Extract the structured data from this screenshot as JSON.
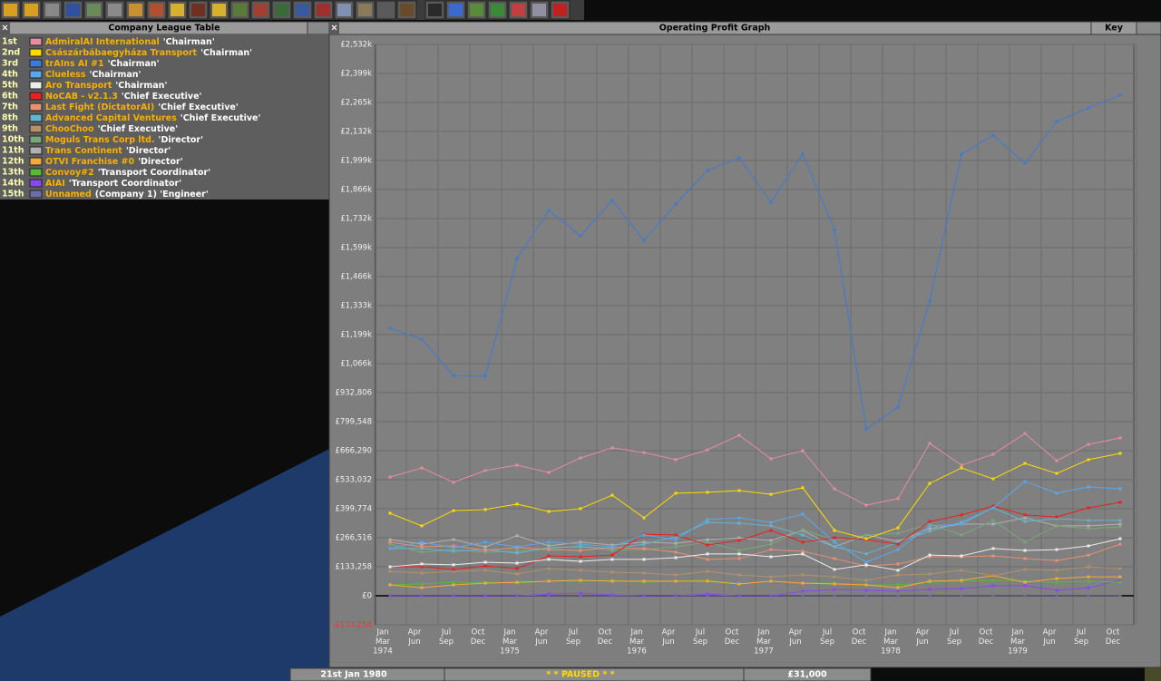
{
  "league_table": {
    "title": "Company League Table",
    "rows": [
      {
        "rank": "1st",
        "title": "'Chairman'"
      },
      {
        "rank": "2nd",
        "title": "'Chairman'"
      },
      {
        "rank": "3rd",
        "title": "'Chairman'"
      },
      {
        "rank": "4th",
        "title": "'Chairman'"
      },
      {
        "rank": "5th",
        "title": "'Chairman'"
      },
      {
        "rank": "6th",
        "title": "'Chief Executive'"
      },
      {
        "rank": "7th",
        "title": "'Chief Executive'"
      },
      {
        "rank": "8th",
        "title": "'Chief Executive'"
      },
      {
        "rank": "9th",
        "title": "'Chief Executive'"
      },
      {
        "rank": "10th",
        "title": "'Director'"
      },
      {
        "rank": "11th",
        "title": "'Director'"
      },
      {
        "rank": "12th",
        "title": "'Director'"
      },
      {
        "rank": "13th",
        "title": "'Transport Coordinator'"
      },
      {
        "rank": "14th",
        "title": "'Transport Coordinator'"
      },
      {
        "rank": "15th",
        "title": "(Company 1) 'Engineer'"
      }
    ]
  },
  "chart_data": {
    "type": "line",
    "title": "Operating Profit Graph",
    "key_button": "Key",
    "grid": true,
    "categories": [
      [
        "Jan",
        "Mar",
        "1974"
      ],
      [
        "Apr",
        "Jun"
      ],
      [
        "Jul",
        "Sep"
      ],
      [
        "Oct",
        "Dec"
      ],
      [
        "Jan",
        "Mar",
        "1975"
      ],
      [
        "Apr",
        "Jun"
      ],
      [
        "Jul",
        "Sep"
      ],
      [
        "Oct",
        "Dec"
      ],
      [
        "Jan",
        "Mar",
        "1976"
      ],
      [
        "Apr",
        "Jun"
      ],
      [
        "Jul",
        "Sep"
      ],
      [
        "Oct",
        "Dec"
      ],
      [
        "Jan",
        "Mar",
        "1977"
      ],
      [
        "Apr",
        "Jun"
      ],
      [
        "Jul",
        "Sep"
      ],
      [
        "Oct",
        "Dec"
      ],
      [
        "Jan",
        "Mar",
        "1978"
      ],
      [
        "Apr",
        "Jun"
      ],
      [
        "Jul",
        "Sep"
      ],
      [
        "Oct",
        "Dec"
      ],
      [
        "Jan",
        "Mar",
        "1979"
      ],
      [
        "Apr",
        "Jun"
      ],
      [
        "Jul",
        "Sep"
      ],
      [
        "Oct",
        "Dec"
      ]
    ],
    "ylim": [
      -133258,
      2531902
    ],
    "yticks": [
      {
        "value": -133258,
        "label": "-£133,258"
      },
      {
        "value": 0,
        "label": "£0"
      },
      {
        "value": 133258,
        "label": "£133,258"
      },
      {
        "value": 266516,
        "label": "£266,516"
      },
      {
        "value": 399774,
        "label": "£399,774"
      },
      {
        "value": 533032,
        "label": "£533,032"
      },
      {
        "value": 666290,
        "label": "£666,290"
      },
      {
        "value": 799548,
        "label": "£799,548"
      },
      {
        "value": 932806,
        "label": "£932,806"
      },
      {
        "value": 1066064,
        "label": "£1,066k"
      },
      {
        "value": 1199322,
        "label": "£1,199k"
      },
      {
        "value": 1332580,
        "label": "£1,333k"
      },
      {
        "value": 1465838,
        "label": "£1,466k"
      },
      {
        "value": 1599096,
        "label": "£1,599k"
      },
      {
        "value": 1732354,
        "label": "£1,732k"
      },
      {
        "value": 1865612,
        "label": "£1,866k"
      },
      {
        "value": 1998870,
        "label": "£1,999k"
      },
      {
        "value": 2132128,
        "label": "£2,132k"
      },
      {
        "value": 2265386,
        "label": "£2,265k"
      },
      {
        "value": 2398644,
        "label": "£2,399k"
      },
      {
        "value": 2531902,
        "label": "£2,532k"
      }
    ],
    "series": [
      {
        "name": "AdmiralAI International",
        "color": "#e48ca0",
        "values": [
          545000,
          587000,
          521000,
          575000,
          600000,
          566000,
          633000,
          679000,
          658000,
          625000,
          670000,
          737000,
          629000,
          666000,
          491000,
          416000,
          446000,
          700000,
          600000,
          650000,
          745000,
          620000,
          695000,
          725000
        ]
      },
      {
        "name": "Császárbábaegyháza Transport",
        "color": "#fcdc00",
        "values": [
          379000,
          321000,
          391000,
          396000,
          421000,
          387000,
          400000,
          462000,
          358000,
          471000,
          475000,
          483000,
          466000,
          496000,
          300000,
          262000,
          312000,
          516000,
          587000,
          537000,
          608000,
          562000,
          625000,
          654000
        ]
      },
      {
        "name": "trAIns AI #1",
        "color": "#3c7ad8",
        "values": [
          1228000,
          1178000,
          1012000,
          1008000,
          1549000,
          1770000,
          1653000,
          1816000,
          1632000,
          1799000,
          1953000,
          2011000,
          1807000,
          2028000,
          1682000,
          766000,
          866000,
          1353000,
          2028000,
          2115000,
          1986000,
          2178000,
          2240000,
          2299000
        ]
      },
      {
        "name": "Clueless",
        "color": "#58a8f0",
        "values": [
          217000,
          246000,
          221000,
          246000,
          225000,
          246000,
          237000,
          225000,
          279000,
          258000,
          350000,
          358000,
          337000,
          375000,
          246000,
          154000,
          212000,
          321000,
          329000,
          404000,
          525000,
          471000,
          500000,
          491000
        ]
      },
      {
        "name": "Aro Transport",
        "color": "#ececec",
        "values": [
          133000,
          146000,
          142000,
          154000,
          150000,
          167000,
          158000,
          167000,
          167000,
          175000,
          192000,
          192000,
          179000,
          192000,
          121000,
          142000,
          117000,
          187000,
          183000,
          217000,
          208000,
          212000,
          229000,
          262000
        ]
      },
      {
        "name": "NoCAB - v2.1.3",
        "color": "#e82020",
        "values": [
          133000,
          133000,
          121000,
          137000,
          125000,
          183000,
          179000,
          187000,
          283000,
          279000,
          233000,
          254000,
          300000,
          246000,
          267000,
          258000,
          237000,
          341000,
          371000,
          412000,
          371000,
          362000,
          404000,
          429000
        ]
      },
      {
        "name": "Last Fight (DictatorAI)",
        "color": "#e89070",
        "values": [
          246000,
          225000,
          229000,
          208000,
          221000,
          212000,
          208000,
          221000,
          217000,
          200000,
          167000,
          171000,
          212000,
          204000,
          171000,
          137000,
          146000,
          179000,
          179000,
          183000,
          171000,
          162000,
          187000,
          237000
        ]
      },
      {
        "name": "Advanced Capital Ventures",
        "color": "#64b4d0",
        "values": [
          217000,
          217000,
          204000,
          212000,
          196000,
          221000,
          225000,
          217000,
          237000,
          271000,
          337000,
          333000,
          321000,
          279000,
          225000,
          192000,
          246000,
          296000,
          337000,
          404000,
          341000,
          354000,
          346000,
          346000
        ]
      },
      {
        "name": "ChooChoo",
        "color": "#b49068",
        "values": [
          112000,
          104000,
          112000,
          117000,
          100000,
          125000,
          117000,
          108000,
          104000,
          96000,
          112000,
          96000,
          87000,
          96000,
          87000,
          71000,
          96000,
          100000,
          117000,
          92000,
          121000,
          117000,
          133000,
          125000
        ]
      },
      {
        "name": "Moguls Trans Corp ltd.",
        "color": "#78a878",
        "values": [
          237000,
          200000,
          212000,
          200000,
          204000,
          217000,
          229000,
          208000,
          212000,
          225000,
          246000,
          208000,
          237000,
          304000,
          254000,
          279000,
          287000,
          329000,
          279000,
          346000,
          246000,
          321000,
          308000,
          316000
        ]
      },
      {
        "name": "Trans Continent",
        "color": "#b0b0b0",
        "values": [
          258000,
          237000,
          258000,
          225000,
          275000,
          229000,
          246000,
          233000,
          246000,
          241000,
          258000,
          266000,
          254000,
          300000,
          225000,
          279000,
          250000,
          308000,
          329000,
          329000,
          358000,
          321000,
          321000,
          329000
        ]
      },
      {
        "name": "OTVI Franchise #0",
        "color": "#f8a838",
        "values": [
          50000,
          37000,
          50000,
          58000,
          62000,
          67000,
          71000,
          67000,
          67000,
          67000,
          67000,
          54000,
          67000,
          58000,
          54000,
          50000,
          37000,
          67000,
          71000,
          92000,
          62000,
          79000,
          87000,
          87000
        ]
      },
      {
        "name": "Convoy#2",
        "color": "#58b838",
        "values": [
          50000,
          54000,
          62000,
          62000,
          58000,
          67000,
          67000,
          71000,
          62000,
          67000,
          71000,
          54000,
          67000,
          58000,
          58000,
          50000,
          50000,
          62000,
          67000,
          71000,
          67000,
          62000,
          67000,
          62000
        ]
      },
      {
        "name": "AIAI",
        "color": "#8848f0",
        "values": [
          0,
          0,
          0,
          0,
          0,
          8000,
          12000,
          4000,
          0,
          0,
          8000,
          0,
          0,
          21000,
          29000,
          25000,
          21000,
          29000,
          33000,
          46000,
          46000,
          25000,
          37000,
          71000
        ]
      },
      {
        "name": "Unnamed",
        "color": "#6c6ca8",
        "values": [
          0,
          0,
          0,
          0,
          0,
          0,
          0,
          0,
          0,
          0,
          0,
          0,
          0,
          0,
          0,
          0,
          0,
          0,
          0,
          0,
          0,
          0,
          0,
          0
        ]
      }
    ]
  },
  "status_bar": {
    "date": "21st Jan 1980",
    "state": "* * PAUSED * *",
    "money": "£31,000"
  }
}
